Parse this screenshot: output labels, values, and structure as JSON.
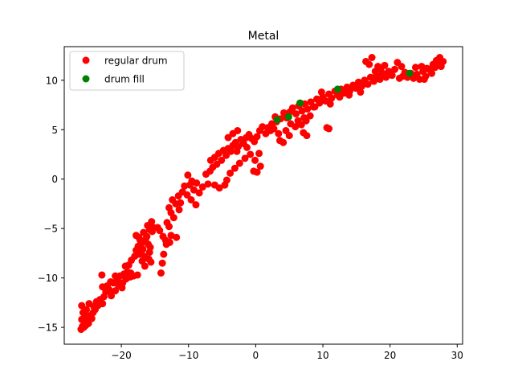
{
  "chart_data": {
    "type": "scatter",
    "title": "Metal",
    "xlabel": "",
    "ylabel": "",
    "xlim": [
      -28.5,
      30.8
    ],
    "ylim": [
      -16.7,
      13.4
    ],
    "xticks": [
      -20,
      -10,
      0,
      10,
      20,
      30
    ],
    "yticks": [
      -15,
      -10,
      -5,
      0,
      5,
      10
    ],
    "grid": false,
    "legend_position": "top-left",
    "series": [
      {
        "name": "regular drum",
        "color": "#ff0000",
        "points": [
          [
            -26,
            -15.2
          ],
          [
            -25.8,
            -14.9
          ],
          [
            -25.6,
            -15
          ],
          [
            -25.5,
            -14.6
          ],
          [
            -25.9,
            -14.2
          ],
          [
            -25.3,
            -14.8
          ],
          [
            -25.1,
            -14.3
          ],
          [
            -24.9,
            -14.6
          ],
          [
            -25.4,
            -13.8
          ],
          [
            -25.7,
            -13.5
          ],
          [
            -25.9,
            -12.8
          ],
          [
            -25.2,
            -13.2
          ],
          [
            -24.6,
            -13.8
          ],
          [
            -24.4,
            -14.1
          ],
          [
            -24.2,
            -13.5
          ],
          [
            -24.8,
            -12.6
          ],
          [
            -24.1,
            -12.9
          ],
          [
            -23.7,
            -12.4
          ],
          [
            -23.9,
            -13.2
          ],
          [
            -23.5,
            -12.8
          ],
          [
            -23.2,
            -12.2
          ],
          [
            -22.8,
            -12.6
          ],
          [
            -22.6,
            -11.9
          ],
          [
            -22.3,
            -11.4
          ],
          [
            -22.8,
            -10.9
          ],
          [
            -22.1,
            -10.8
          ],
          [
            -21.8,
            -11.2
          ],
          [
            -21.5,
            -11.8
          ],
          [
            -21.2,
            -10.5
          ],
          [
            -20.9,
            -11.3
          ],
          [
            -20.6,
            -10.2
          ],
          [
            -20.4,
            -10.8
          ],
          [
            -20.2,
            -9.8
          ],
          [
            -19.8,
            -10.5
          ],
          [
            -20.9,
            -9.8
          ],
          [
            -19.6,
            -9.6
          ],
          [
            -19.3,
            -10.1
          ],
          [
            -19.1,
            -9.4
          ],
          [
            -18.7,
            -9.9
          ],
          [
            -19.4,
            -8.8
          ],
          [
            -18.9,
            -8.7
          ],
          [
            -18.5,
            -8.2
          ],
          [
            -18.6,
            -9.5
          ],
          [
            -22.9,
            -9.7
          ],
          [
            -21.6,
            -10.4
          ],
          [
            -19.9,
            -11
          ],
          [
            -18.2,
            -9.8
          ],
          [
            -17.6,
            -9.7
          ],
          [
            -18,
            -7.8
          ],
          [
            -17.8,
            -7.2
          ],
          [
            -17.5,
            -6.8
          ],
          [
            -17.2,
            -6.2
          ],
          [
            -17.8,
            -5.7
          ],
          [
            -17.4,
            -5.9
          ],
          [
            -17,
            -6.5
          ],
          [
            -16.8,
            -7.1
          ],
          [
            -17.3,
            -7.6
          ],
          [
            -16.6,
            -7.8
          ],
          [
            -16.9,
            -8.3
          ],
          [
            -16.4,
            -6.1
          ],
          [
            -16.2,
            -5.8
          ],
          [
            -16,
            -6.6
          ],
          [
            -15.8,
            -7.4
          ],
          [
            -15.6,
            -8.4
          ],
          [
            -16.5,
            -8.8
          ],
          [
            -15.9,
            -8.1
          ],
          [
            -15.7,
            -6.9
          ],
          [
            -16.7,
            -5.4
          ],
          [
            -15.8,
            -5.1
          ],
          [
            -15.4,
            -5.3
          ],
          [
            -15.2,
            -4.9
          ],
          [
            -16.1,
            -4.7
          ],
          [
            -15.5,
            -4.3
          ],
          [
            -14.6,
            -4.9
          ],
          [
            -14.3,
            -5.2
          ],
          [
            -13.8,
            -5.8
          ],
          [
            -13.4,
            -6.2
          ],
          [
            -12.6,
            -5.7
          ],
          [
            -13.2,
            -4.4
          ],
          [
            -12.9,
            -4.8
          ],
          [
            -14.1,
            -9.5
          ],
          [
            -13.9,
            -8.5
          ],
          [
            -13.7,
            -7.6
          ],
          [
            -13.3,
            -6.6
          ],
          [
            -12.8,
            -6.4
          ],
          [
            -11.8,
            -5.9
          ],
          [
            -12.6,
            -3.4
          ],
          [
            -12.9,
            -2.9
          ],
          [
            -12.2,
            -3.9
          ],
          [
            -12.4,
            -2.1
          ],
          [
            -11.9,
            -2.5
          ],
          [
            -11.5,
            -1.7
          ],
          [
            -11.2,
            -2.4
          ],
          [
            -10.9,
            -1.3
          ],
          [
            -11.4,
            -3.1
          ],
          [
            -10.6,
            -0.7
          ],
          [
            -10.2,
            -1.6
          ],
          [
            -9.8,
            -0.6
          ],
          [
            -9.5,
            -0.2
          ],
          [
            -10.1,
            0.4
          ],
          [
            -9.6,
            -2.1
          ],
          [
            -9.2,
            -1.1
          ],
          [
            -8.8,
            -0.4
          ],
          [
            -8.4,
            -1.4
          ],
          [
            -8.9,
            -2.6
          ],
          [
            -7.9,
            -0.8
          ],
          [
            -7.4,
            0.5
          ],
          [
            -7.1,
            -0.5
          ],
          [
            -6.8,
            0.8
          ],
          [
            -6.4,
            1.2
          ],
          [
            -6.7,
            1.9
          ],
          [
            -6.1,
            2.2
          ],
          [
            -5.8,
            1.5
          ],
          [
            -5.5,
            2.6
          ],
          [
            -5.1,
            1.9
          ],
          [
            -4.8,
            2.9
          ],
          [
            -4.4,
            2.4
          ],
          [
            -4.1,
            3.1
          ],
          [
            -3.7,
            2.8
          ],
          [
            -3.4,
            3.4
          ],
          [
            -3,
            3.7
          ],
          [
            -2.6,
            3.3
          ],
          [
            -2.2,
            4
          ],
          [
            -1.8,
            3.6
          ],
          [
            -1.4,
            4.2
          ],
          [
            -1,
            4.5
          ],
          [
            -0.6,
            4.1
          ],
          [
            -0.2,
            3.8
          ],
          [
            0.2,
            4.3
          ],
          [
            -1.6,
            2.1
          ],
          [
            -2.4,
            1.6
          ],
          [
            -3.1,
            1.1
          ],
          [
            -3.8,
            0.6
          ],
          [
            -4.3,
            -0.1
          ],
          [
            -4.6,
            -0.6
          ],
          [
            -5.4,
            -0.9
          ],
          [
            -6.1,
            -0.6
          ],
          [
            -2.8,
            2.8
          ],
          [
            -1.3,
            3.2
          ],
          [
            -0.8,
            2.5
          ],
          [
            -0.1,
            1.9
          ],
          [
            0.5,
            2.6
          ],
          [
            0.7,
            1.3
          ],
          [
            0.2,
            0.7
          ],
          [
            -0.3,
            0.8
          ],
          [
            -4.1,
            4.2
          ],
          [
            -3.4,
            4.6
          ],
          [
            -2.7,
            4.9
          ],
          [
            0.6,
            4.9
          ],
          [
            1,
            5.3
          ],
          [
            1.8,
            5.2
          ],
          [
            2.4,
            5.6
          ],
          [
            2.9,
            6.3
          ],
          [
            2.2,
            4.9
          ],
          [
            3.4,
            4.6
          ],
          [
            3.1,
            5.8
          ],
          [
            3.7,
            6.1
          ],
          [
            4.2,
            6.7
          ],
          [
            4.6,
            6.2
          ],
          [
            5.1,
            6.8
          ],
          [
            5.5,
            7.2
          ],
          [
            6,
            6.6
          ],
          [
            6.4,
            7.4
          ],
          [
            6.9,
            6.9
          ],
          [
            7.3,
            7.6
          ],
          [
            7.7,
            7.1
          ],
          [
            8.2,
            7.8
          ],
          [
            8.6,
            7.3
          ],
          [
            9.1,
            8.1
          ],
          [
            9.5,
            7.7
          ],
          [
            10,
            8.3
          ],
          [
            10.4,
            7.9
          ],
          [
            10.9,
            8.6
          ],
          [
            11.3,
            8.2
          ],
          [
            11.8,
            8.9
          ],
          [
            12.2,
            8.5
          ],
          [
            12.7,
            9.1
          ],
          [
            13.1,
            8.7
          ],
          [
            13.6,
            9.3
          ],
          [
            14,
            8.9
          ],
          [
            4.5,
            4.9
          ],
          [
            5.2,
            5.6
          ],
          [
            5.9,
            5.3
          ],
          [
            6.3,
            5.9
          ],
          [
            6.8,
            5.5
          ],
          [
            7.2,
            6.2
          ],
          [
            7.6,
            4.4
          ],
          [
            7.1,
            4.7
          ],
          [
            7.5,
            5.9
          ],
          [
            8.1,
            6.4
          ],
          [
            10.6,
            5.2
          ],
          [
            10.9,
            5.1
          ],
          [
            3.6,
            3.9
          ],
          [
            4.1,
            3.7
          ],
          [
            5,
            4.4
          ],
          [
            14.5,
            9.5
          ],
          [
            14.9,
            9.2
          ],
          [
            15.3,
            9.8
          ],
          [
            15.8,
            9.4
          ],
          [
            16.2,
            10
          ],
          [
            16.7,
            9.6
          ],
          [
            17.1,
            10.3
          ],
          [
            17.6,
            9.9
          ],
          [
            18,
            10.5
          ],
          [
            18.5,
            10.1
          ],
          [
            18.9,
            10.7
          ],
          [
            19.4,
            10.3
          ],
          [
            19.8,
            10.9
          ],
          [
            20.3,
            10.5
          ],
          [
            16.4,
            11.9
          ],
          [
            17.3,
            12.3
          ],
          [
            16.9,
            11.6
          ],
          [
            18.6,
            11.1
          ],
          [
            19.2,
            11.5
          ],
          [
            21.1,
            11.8
          ],
          [
            21.7,
            11.4
          ],
          [
            22.2,
            10.8
          ],
          [
            22.6,
            10.3
          ],
          [
            23.1,
            10.7
          ],
          [
            23.5,
            10.2
          ],
          [
            24,
            10.6
          ],
          [
            24.4,
            10.1
          ],
          [
            24.9,
            10.9
          ],
          [
            25.3,
            10.4
          ],
          [
            25.8,
            11.1
          ],
          [
            26.2,
            10.7
          ],
          [
            26.7,
            11.3
          ],
          [
            27.1,
            11.7
          ],
          [
            27.6,
            11.4
          ],
          [
            27.9,
            11.9
          ],
          [
            27.4,
            12.3
          ],
          [
            26.4,
            11.6
          ],
          [
            25.5,
            11.2
          ],
          [
            24.7,
            11.4
          ],
          [
            23.8,
            11.3
          ],
          [
            21.4,
            10.2
          ],
          [
            21.9,
            10.4
          ],
          [
            15.6,
            8.8
          ],
          [
            13.9,
            8.5
          ],
          [
            12.5,
            8.3
          ],
          [
            1.5,
            4.6
          ],
          [
            2.7,
            5.1
          ],
          [
            9.8,
            8.8
          ],
          [
            11.1,
            7.6
          ],
          [
            8.8,
            7.3
          ],
          [
            17.8,
            10.9
          ],
          [
            20.7,
            11.1
          ],
          [
            18.2,
            11.4
          ],
          [
            26.9,
            12
          ],
          [
            25.1,
            10.1
          ]
        ]
      },
      {
        "name": "drum fill",
        "color": "#008000",
        "points": [
          [
            3.2,
            6
          ],
          [
            4.9,
            6.3
          ],
          [
            6.6,
            7.7
          ],
          [
            12.2,
            9.1
          ],
          [
            22.9,
            10.7
          ]
        ]
      }
    ]
  }
}
